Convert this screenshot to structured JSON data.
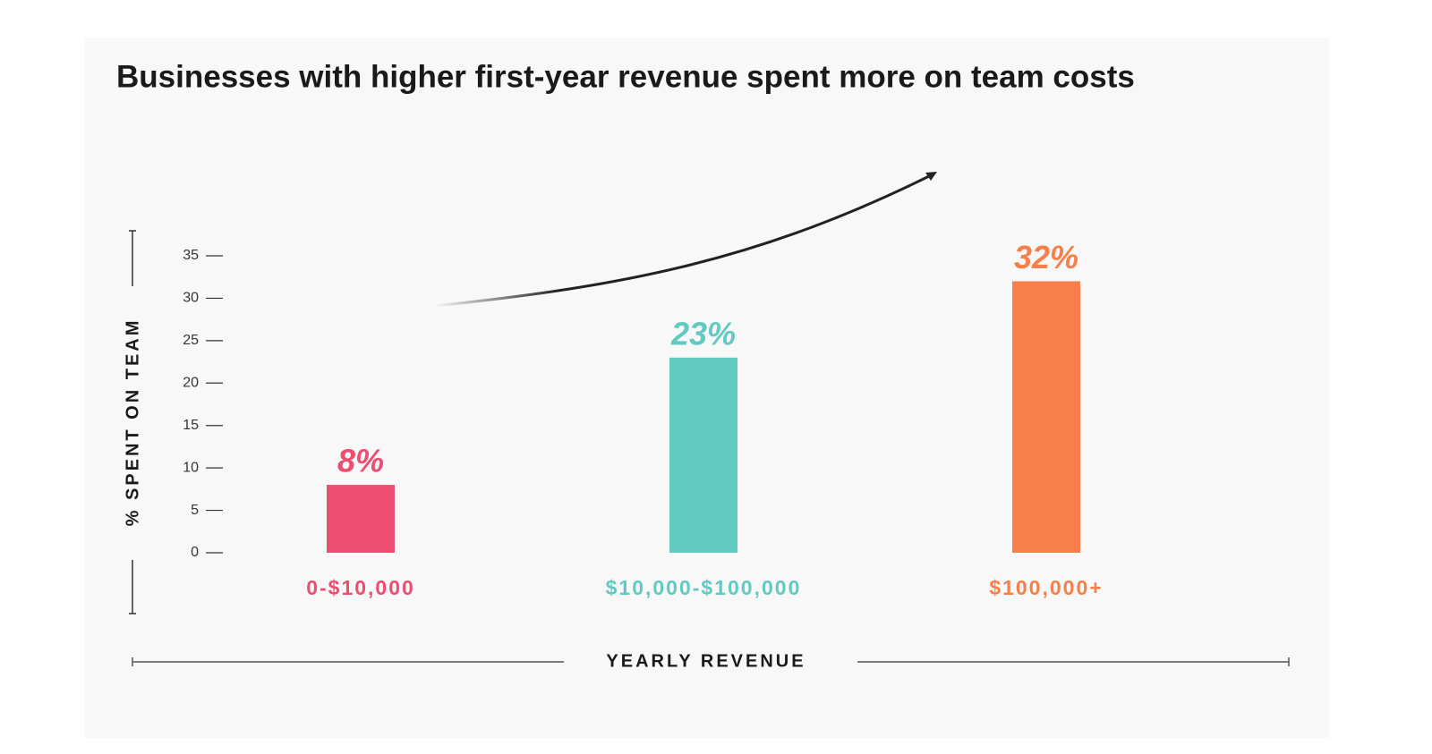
{
  "chart_data": {
    "type": "bar",
    "title": "Businesses with higher first-year revenue spent more on team costs",
    "ylabel": "% SPENT ON TEAM",
    "xlabel": "YEARLY REVENUE",
    "categories": [
      "0-$10,000",
      "$10,000-$100,000",
      "$100,000+"
    ],
    "values": [
      8,
      23,
      32
    ],
    "value_labels": [
      "8%",
      "23%",
      "32%"
    ],
    "colors": [
      "#ec4d70",
      "#63cac2",
      "#f7804a"
    ],
    "ylim": [
      0,
      35
    ],
    "yticks": [
      0,
      5,
      10,
      15,
      20,
      25,
      30,
      35
    ]
  }
}
